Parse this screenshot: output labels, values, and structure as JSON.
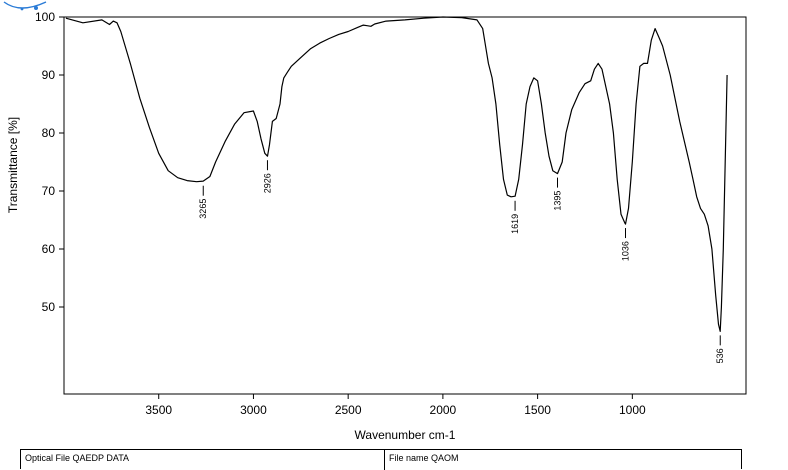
{
  "chart_data": {
    "type": "line",
    "xlabel": "Wavenumber cm-1",
    "ylabel": "Transmittance [%]",
    "xlim": [
      4000,
      400
    ],
    "ylim": [
      35,
      100
    ],
    "x_reversed": true,
    "xticks": [
      3500,
      3000,
      2500,
      2000,
      1500,
      1000
    ],
    "yticks": [
      50,
      60,
      70,
      80,
      90,
      100
    ],
    "grid": false,
    "line_color": "#000000",
    "series": [
      {
        "x": [
          3990,
          3900,
          3800,
          3760,
          3740,
          3720,
          3700,
          3650,
          3600,
          3550,
          3500,
          3450,
          3400,
          3350,
          3300,
          3265,
          3230,
          3200,
          3150,
          3100,
          3050,
          3000,
          2980,
          2960,
          2940,
          2926,
          2915,
          2900,
          2880,
          2860,
          2850,
          2840,
          2820,
          2800,
          2750,
          2700,
          2650,
          2600,
          2550,
          2500,
          2450,
          2420,
          2400,
          2380,
          2360,
          2300,
          2200,
          2100,
          2000,
          1900,
          1820,
          1790,
          1780,
          1770,
          1760,
          1740,
          1720,
          1700,
          1680,
          1660,
          1640,
          1619,
          1600,
          1580,
          1560,
          1540,
          1520,
          1500,
          1480,
          1460,
          1440,
          1420,
          1395,
          1370,
          1350,
          1320,
          1280,
          1250,
          1220,
          1200,
          1180,
          1160,
          1140,
          1120,
          1100,
          1080,
          1060,
          1040,
          1036,
          1020,
          1000,
          980,
          960,
          940,
          920,
          900,
          880,
          860,
          840,
          800,
          750,
          700,
          680,
          660,
          640,
          620,
          600,
          580,
          560,
          545,
          536,
          530,
          520,
          510,
          500
        ],
        "y": [
          99.8,
          99.0,
          99.5,
          98.7,
          99.3,
          99.0,
          97.5,
          92.0,
          86.0,
          81.0,
          76.5,
          73.5,
          72.3,
          71.8,
          71.6,
          71.7,
          72.5,
          75.0,
          78.5,
          81.5,
          83.5,
          83.8,
          82.0,
          79.0,
          76.5,
          76.0,
          78.0,
          82.0,
          82.5,
          85.0,
          88.0,
          89.5,
          90.5,
          91.5,
          93.0,
          94.5,
          95.5,
          96.3,
          97.0,
          97.5,
          98.2,
          98.6,
          98.5,
          98.4,
          98.8,
          99.3,
          99.5,
          99.8,
          100.0,
          99.9,
          99.5,
          98.0,
          96.0,
          94.0,
          92.0,
          89.5,
          85.0,
          78.0,
          72.0,
          69.3,
          69.0,
          69.1,
          72.0,
          78.0,
          85.0,
          88.0,
          89.5,
          89.0,
          85.0,
          80.0,
          76.0,
          73.5,
          73.0,
          75.0,
          80.0,
          84.0,
          87.0,
          88.5,
          89.0,
          91.0,
          92.0,
          91.0,
          88.0,
          85.0,
          80.0,
          72.0,
          66.0,
          64.5,
          64.3,
          67.0,
          75.0,
          85.0,
          91.5,
          92.0,
          92.0,
          96.0,
          98.0,
          96.5,
          95.0,
          90.0,
          82.0,
          75.0,
          72.0,
          69.0,
          67.0,
          66.0,
          64.0,
          60.0,
          52.0,
          47.0,
          45.8,
          50.0,
          60.0,
          75.0,
          90.0
        ]
      }
    ],
    "annotations": [
      {
        "x": 3265,
        "y": 71.6,
        "label": "3265"
      },
      {
        "x": 2926,
        "y": 76.0,
        "label": "2926"
      },
      {
        "x": 1619,
        "y": 69.0,
        "label": "1619"
      },
      {
        "x": 1395,
        "y": 73.0,
        "label": "1395"
      },
      {
        "x": 1036,
        "y": 64.3,
        "label": "1036"
      },
      {
        "x": 536,
        "y": 45.8,
        "label": "536"
      }
    ]
  },
  "footer": {
    "left_text": "Optical File QAEDP DATA",
    "right_text": "File name QAOM"
  }
}
